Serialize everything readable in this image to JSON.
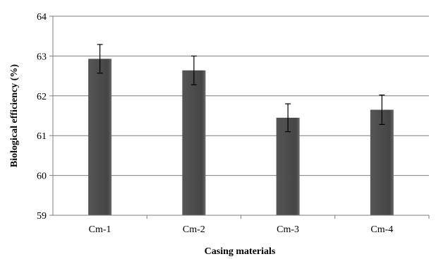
{
  "chart_data": {
    "type": "bar",
    "title": "",
    "xlabel": "Casing materials",
    "ylabel": "Biological efficiency (%)",
    "categories": [
      "Cm-1",
      "Cm-2",
      "Cm-3",
      "Cm-4"
    ],
    "values": [
      62.93,
      62.64,
      61.45,
      61.65
    ],
    "error": [
      0.36,
      0.36,
      0.35,
      0.37
    ],
    "ylim": [
      59,
      64
    ],
    "yticks": [
      59,
      60,
      61,
      62,
      63,
      64
    ],
    "grid": true,
    "legend": "none",
    "bar_color": "#454545"
  }
}
